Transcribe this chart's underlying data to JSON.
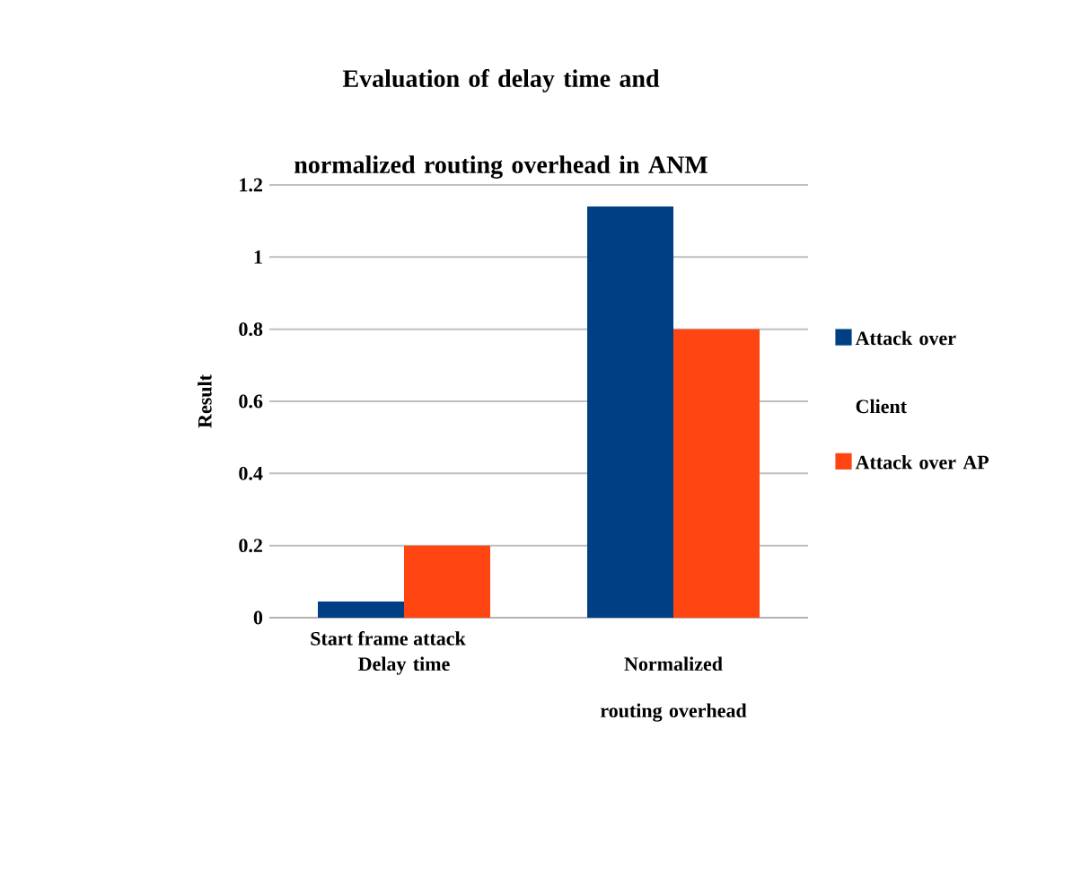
{
  "chart_data": {
    "type": "bar",
    "title": "Evaluation of delay time and normalized routing overhead in ANM",
    "xlabel": "Start frame attack",
    "ylabel": "Result",
    "categories": [
      "Delay time",
      "Normalized routing overhead"
    ],
    "series": [
      {
        "name": "Attack over Client",
        "color": "#003f84",
        "values": [
          0.045,
          1.14
        ]
      },
      {
        "name": "Attack over AP",
        "color": "#ff4512",
        "values": [
          0.2,
          0.8
        ]
      }
    ],
    "ylim": [
      0,
      1.2
    ],
    "yticks": [
      0,
      0.2,
      0.4,
      0.6,
      0.8,
      1,
      1.2
    ],
    "grid": "y",
    "legend": "right"
  }
}
